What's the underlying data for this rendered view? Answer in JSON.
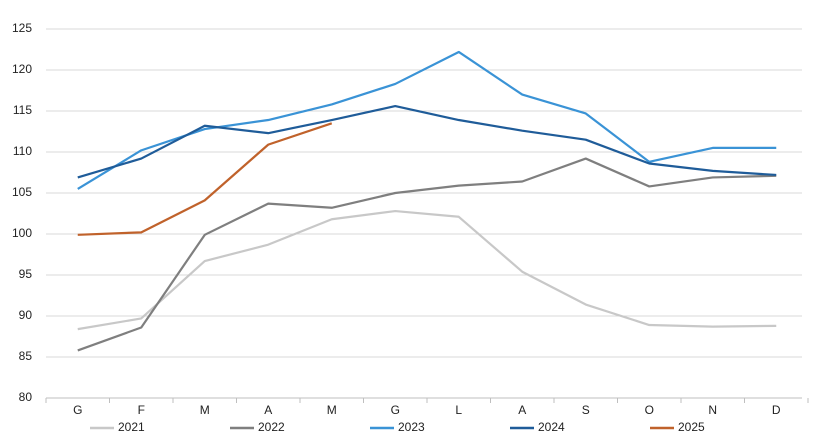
{
  "chart_data": {
    "type": "line",
    "categories": [
      "G",
      "F",
      "M",
      "A",
      "M",
      "G",
      "L",
      "A",
      "S",
      "O",
      "N",
      "D"
    ],
    "series": [
      {
        "name": "2021",
        "color": "#c8c8c8",
        "values": [
          88.4,
          89.7,
          96.7,
          98.7,
          101.8,
          102.8,
          102.1,
          95.4,
          91.4,
          88.9,
          88.7,
          88.8
        ]
      },
      {
        "name": "2022",
        "color": "#7f7f7f",
        "values": [
          85.8,
          88.6,
          99.9,
          103.7,
          103.2,
          105.0,
          105.9,
          106.4,
          109.2,
          105.8,
          106.9,
          107.1
        ]
      },
      {
        "name": "2023",
        "color": "#3a93d6",
        "values": [
          105.5,
          110.2,
          112.8,
          113.9,
          115.8,
          118.3,
          122.2,
          117.0,
          114.7,
          108.8,
          110.5,
          110.5
        ]
      },
      {
        "name": "2024",
        "color": "#1f5c99",
        "values": [
          106.9,
          109.2,
          113.2,
          112.3,
          113.9,
          115.6,
          113.9,
          112.6,
          111.5,
          108.6,
          107.7,
          107.2
        ]
      },
      {
        "name": "2025",
        "color": "#c0622b",
        "values": [
          99.9,
          100.2,
          104.1,
          110.9,
          113.5,
          null,
          null,
          null,
          null,
          null,
          null,
          null
        ]
      }
    ],
    "ylim": [
      80,
      125
    ],
    "yticks": [
      80,
      85,
      90,
      95,
      100,
      105,
      110,
      115,
      120,
      125
    ],
    "grid": true,
    "legend": "bottom"
  }
}
